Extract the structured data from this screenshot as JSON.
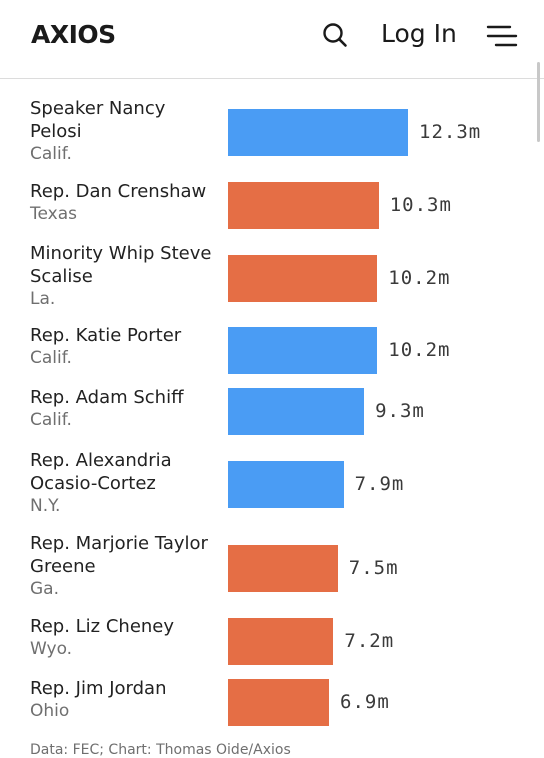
{
  "header": {
    "logo_text": "AXIOS",
    "login_label": "Log In",
    "icons": {
      "search": "search-icon",
      "menu": "menu-icon"
    }
  },
  "colors": {
    "democrat": "#4a9cf4",
    "republican": "#e56e45"
  },
  "chart_data": {
    "type": "bar",
    "orientation": "horizontal",
    "unit": "m",
    "xlim": [
      0,
      13
    ],
    "grid": false,
    "legend": "none",
    "rows": [
      {
        "name": "Speaker Nancy Pelosi",
        "state": "Calif.",
        "value": 12.3,
        "label": "12.3m",
        "party": "democrat"
      },
      {
        "name": "Rep. Dan Crenshaw",
        "state": "Texas",
        "value": 10.3,
        "label": "10.3m",
        "party": "republican"
      },
      {
        "name": "Minority Whip Steve Scalise",
        "state": "La.",
        "value": 10.2,
        "label": "10.2m",
        "party": "republican"
      },
      {
        "name": "Rep. Katie Porter",
        "state": "Calif.",
        "value": 10.2,
        "label": "10.2m",
        "party": "democrat"
      },
      {
        "name": "Rep. Adam Schiff",
        "state": "Calif.",
        "value": 9.3,
        "label": "9.3m",
        "party": "democrat"
      },
      {
        "name": "Rep. Alexandria Ocasio-Cortez",
        "state": "N.Y.",
        "value": 7.9,
        "label": "7.9m",
        "party": "democrat"
      },
      {
        "name": "Rep. Marjorie Taylor Greene",
        "state": "Ga.",
        "value": 7.5,
        "label": "7.5m",
        "party": "republican"
      },
      {
        "name": "Rep. Liz Cheney",
        "state": "Wyo.",
        "value": 7.2,
        "label": "7.2m",
        "party": "republican"
      },
      {
        "name": "Rep. Jim Jordan",
        "state": "Ohio",
        "value": 6.9,
        "label": "6.9m",
        "party": "republican"
      }
    ]
  },
  "footer": {
    "source_text": "Data: FEC; Chart: Thomas Oide/Axios"
  }
}
